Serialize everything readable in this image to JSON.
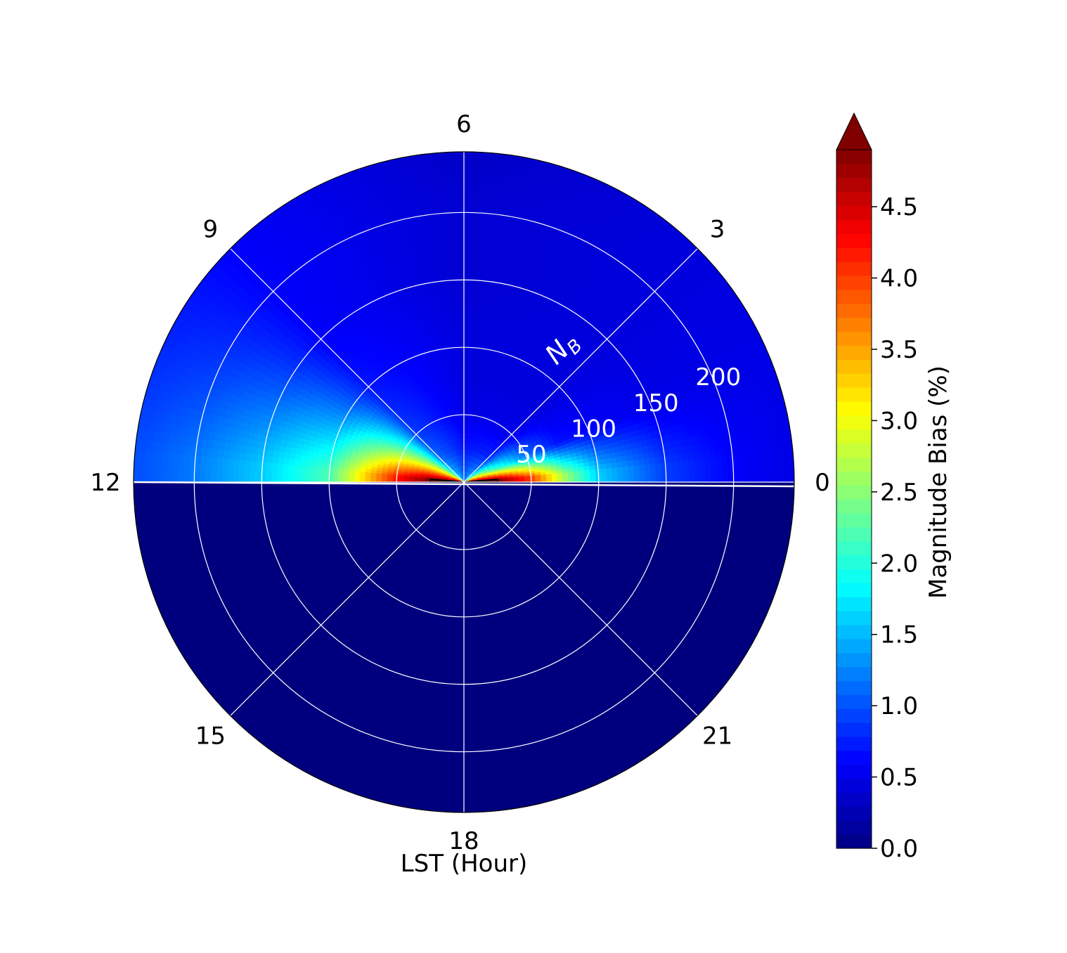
{
  "chart_data": {
    "type": "polar-contourf",
    "title": "",
    "theta_axis": {
      "label": "LST (Hour)",
      "ticks": [
        "0",
        "3",
        "6",
        "9",
        "12",
        "15",
        "18",
        "21"
      ],
      "tick_values_hours": [
        0,
        3,
        6,
        9,
        12,
        15,
        18,
        21
      ],
      "direction": "counterclockwise",
      "zero_location": "east"
    },
    "radial_axis": {
      "label": "N",
      "label_subscript": "B",
      "ticks": [
        "50",
        "100",
        "150",
        "200"
      ],
      "tick_values": [
        50,
        100,
        150,
        200
      ],
      "range": [
        0,
        245
      ]
    },
    "colorbar": {
      "label": "Magnitude Bias (%)",
      "range": [
        0.0,
        4.9
      ],
      "ticks": [
        "0.0",
        "0.5",
        "1.0",
        "1.5",
        "2.0",
        "2.5",
        "3.0",
        "3.5",
        "4.0",
        "4.5"
      ],
      "tick_values": [
        0.0,
        0.5,
        1.0,
        1.5,
        2.0,
        2.5,
        3.0,
        3.5,
        4.0,
        4.5
      ],
      "colormap": "jet",
      "extend": "max",
      "levels": 50
    },
    "field_summary": {
      "filled_range_lst_hours": [
        0,
        12
      ],
      "unfilled_range_lst_hours": [
        12,
        24
      ],
      "unfilled_value": 0.0,
      "highest_bias_near_center_lst_hours": [
        0,
        12
      ],
      "far_radius_bias": 0.5
    },
    "profiles_by_lst": [
      {
        "lst": 0.3,
        "N_B": [
          5,
          25,
          50,
          75,
          100,
          150,
          200,
          240
        ],
        "bias": [
          5.0,
          4.9,
          4.0,
          2.6,
          1.6,
          0.9,
          0.6,
          0.5
        ]
      },
      {
        "lst": 1.5,
        "N_B": [
          5,
          25,
          50,
          75,
          100,
          150,
          200,
          240
        ],
        "bias": [
          3.5,
          2.2,
          1.2,
          0.7,
          0.6,
          0.5,
          0.5,
          0.5
        ]
      },
      {
        "lst": 3.0,
        "N_B": [
          5,
          25,
          50,
          75,
          100,
          150,
          200,
          240
        ],
        "bias": [
          1.5,
          0.8,
          0.5,
          0.45,
          0.45,
          0.45,
          0.45,
          0.45
        ]
      },
      {
        "lst": 6.0,
        "N_B": [
          5,
          25,
          50,
          75,
          100,
          150,
          200,
          240
        ],
        "bias": [
          1.0,
          0.7,
          0.5,
          0.45,
          0.45,
          0.4,
          0.4,
          0.35
        ]
      },
      {
        "lst": 9.0,
        "N_B": [
          5,
          25,
          50,
          75,
          100,
          150,
          200,
          240
        ],
        "bias": [
          1.6,
          1.1,
          0.9,
          0.8,
          0.7,
          0.6,
          0.6,
          0.6
        ]
      },
      {
        "lst": 11.7,
        "N_B": [
          5,
          25,
          50,
          75,
          100,
          150,
          200,
          240
        ],
        "bias": [
          5.0,
          4.9,
          4.2,
          3.2,
          2.2,
          1.6,
          1.2,
          1.0
        ]
      }
    ],
    "contour_line": {
      "value": 4.9,
      "color": "#000000"
    }
  }
}
